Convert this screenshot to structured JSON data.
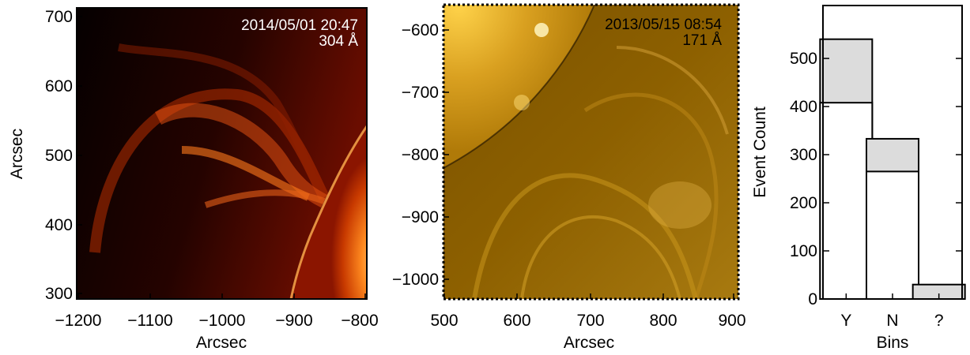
{
  "panels": [
    {
      "timestamp": "2014/05/01 20:47",
      "wavelength": "304 Å",
      "xlabel": "Arcsec",
      "ylabel": "Arcsec",
      "xticks": [
        "−1200",
        "−1100",
        "−1000",
        "−900",
        "−800"
      ],
      "yticks": [
        "700",
        "600",
        "500",
        "400",
        "300"
      ]
    },
    {
      "timestamp": "2013/05/15 08:54",
      "wavelength": "171 Å",
      "xlabel": "Arcsec",
      "xticks": [
        "500",
        "600",
        "700",
        "800",
        "900"
      ],
      "yticks": [
        "−600",
        "−700",
        "−800",
        "−900",
        "−1000"
      ]
    }
  ],
  "colors": {
    "aia304_dark": "#1a0000",
    "aia304_mid": "#8b1500",
    "aia304_bright": "#ff7a1a",
    "aia171_dark": "#4a3000",
    "aia171_mid": "#9a6a00",
    "aia171_bright": "#ffd34a",
    "bar_fill_total": "#dcdcdc",
    "bar_fill_lower": "#ffffff"
  },
  "chart_data": {
    "type": "bar",
    "categories": [
      "Y",
      "N",
      "?"
    ],
    "series": [
      {
        "values": [
          408,
          265,
          0
        ]
      },
      {
        "values": [
          132,
          68,
          30
        ]
      }
    ],
    "stacked": true,
    "xlabel": "Bins",
    "ylabel": "Event Count",
    "ylim": [
      0,
      610
    ],
    "yticks": [
      0,
      100,
      200,
      300,
      400,
      500
    ],
    "grid": false
  }
}
